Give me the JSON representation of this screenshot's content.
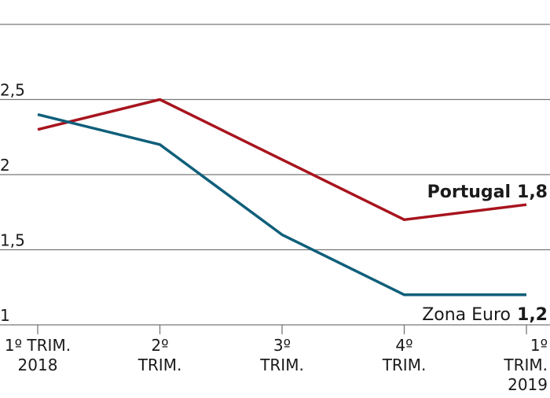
{
  "chart_data": {
    "type": "line",
    "categories": [
      [
        "1º TRIM.",
        "2018"
      ],
      [
        "2º",
        "TRIM."
      ],
      [
        "3º",
        "TRIM."
      ],
      [
        "4º",
        "TRIM."
      ],
      [
        "1º",
        "TRIM.",
        "2019"
      ]
    ],
    "series": [
      {
        "name": "Portugal",
        "color": "#a8141e",
        "values": [
          2.3,
          2.5,
          2.1,
          1.7,
          1.8
        ],
        "end_value_label": "1,8"
      },
      {
        "name": "Zona Euro",
        "color": "#0f5f7a",
        "values": [
          2.4,
          2.2,
          1.6,
          1.2,
          1.2
        ],
        "end_value_label": "1,2"
      }
    ],
    "ylim": [
      1,
      3
    ],
    "yticks": [
      {
        "value": 1,
        "label": "1"
      },
      {
        "value": 1.5,
        "label": "1,5"
      },
      {
        "value": 2,
        "label": "2"
      },
      {
        "value": 2.5,
        "label": "2,5"
      }
    ],
    "grid": true
  }
}
